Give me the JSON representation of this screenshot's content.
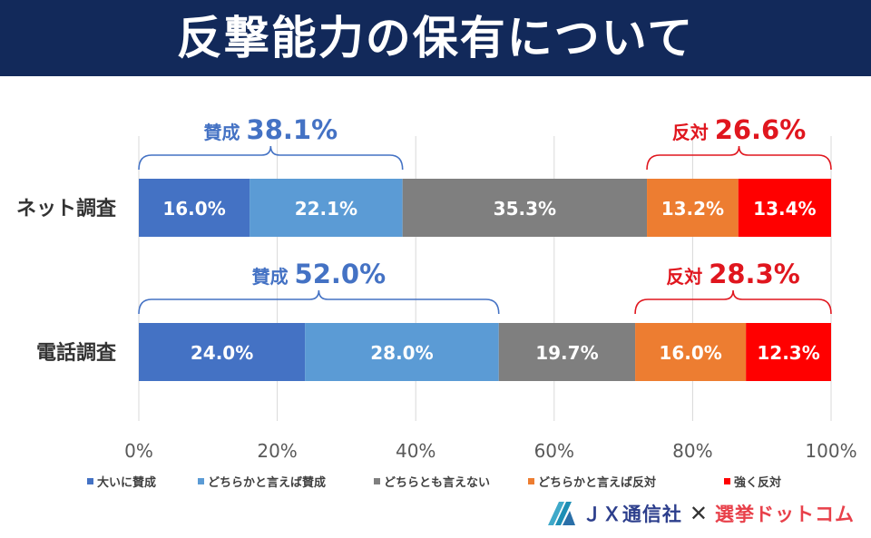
{
  "title": "反撃能力の保有について",
  "chart_data": {
    "type": "bar",
    "orientation": "horizontal",
    "stacked": true,
    "categories": [
      "ネット調査",
      "電話調査"
    ],
    "series": [
      {
        "name": "大いに賛成",
        "color": "#4472c4",
        "values": [
          16.0,
          24.0
        ],
        "labels": [
          "16.0%",
          "24.0%"
        ]
      },
      {
        "name": "どちらかと言えば賛成",
        "color": "#5b9bd5",
        "values": [
          22.1,
          28.0
        ],
        "labels": [
          "22.1%",
          "28.0%"
        ]
      },
      {
        "name": "どちらとも言えない",
        "color": "#7f7f7f",
        "values": [
          35.3,
          19.7
        ],
        "labels": [
          "35.3%",
          "19.7%"
        ]
      },
      {
        "name": "どちらかと言えば反対",
        "color": "#ed7d31",
        "values": [
          13.2,
          16.0
        ],
        "labels": [
          "13.2%",
          "16.0%"
        ]
      },
      {
        "name": "強く反対",
        "color": "#ff0000",
        "values": [
          13.4,
          12.3
        ],
        "labels": [
          "13.4%",
          "12.3%"
        ]
      }
    ],
    "xlim": [
      0,
      100
    ],
    "xticks": [
      "0%",
      "20%",
      "40%",
      "60%",
      "80%",
      "100%"
    ],
    "grid": true,
    "legend": "bottom",
    "annotations": [
      {
        "row": 0,
        "label": "賛成",
        "value": "38.1%",
        "from": 0,
        "to": 38.1,
        "color": "#4472c4"
      },
      {
        "row": 0,
        "label": "反対",
        "value": "26.6%",
        "from": 73.4,
        "to": 100,
        "color": "#e0161e"
      },
      {
        "row": 1,
        "label": "賛成",
        "value": "52.0%",
        "from": 0,
        "to": 52.0,
        "color": "#4472c4"
      },
      {
        "row": 1,
        "label": "反対",
        "value": "28.3%",
        "from": 71.7,
        "to": 100,
        "color": "#e0161e"
      }
    ]
  },
  "footer": {
    "jx_label": "ＪＸ通信社",
    "times": "✕",
    "senkyo_label": "選挙ドットコム"
  }
}
